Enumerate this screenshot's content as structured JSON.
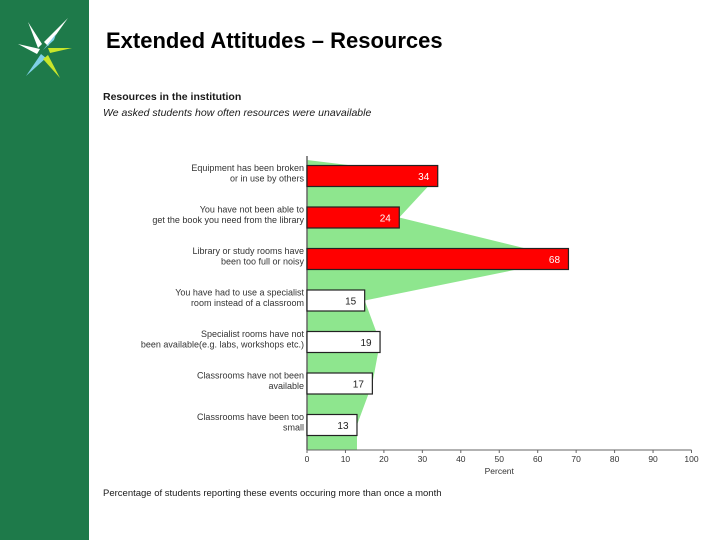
{
  "slide": {
    "title": "Extended Attitudes – Resources"
  },
  "colors": {
    "sidebar": "#1e7a4a",
    "highlight_bar": "#ff0000",
    "plain_bar": "#ffffff",
    "background_shape": "#8ee68e"
  },
  "chart_data": {
    "type": "bar",
    "orientation": "horizontal",
    "title": "Resources in the institution",
    "subtitle": "We asked students how often resources were unavailable",
    "categories": [
      [
        "Equipment has been broken",
        "or in use by others"
      ],
      [
        "You have not been able to",
        "get the book you need from the library"
      ],
      [
        "Library or study rooms have",
        "been too full or noisy"
      ],
      [
        "You have had to use a specialist",
        "room instead of a classroom"
      ],
      [
        "Specialist rooms have not",
        "been available(e.g. labs, workshops etc.)"
      ],
      [
        "Classrooms have not been",
        "available"
      ],
      [
        "Classrooms have been too",
        "small"
      ]
    ],
    "values": [
      34,
      24,
      68,
      15,
      19,
      17,
      13
    ],
    "highlighted": [
      true,
      true,
      true,
      false,
      false,
      false,
      false
    ],
    "xlabel": "Percent",
    "xlim": [
      0,
      100
    ],
    "xticks": [
      0,
      10,
      20,
      30,
      40,
      50,
      60,
      70,
      80,
      90,
      100
    ],
    "footnote": "Percentage of students reporting these events occuring more than once a month"
  }
}
